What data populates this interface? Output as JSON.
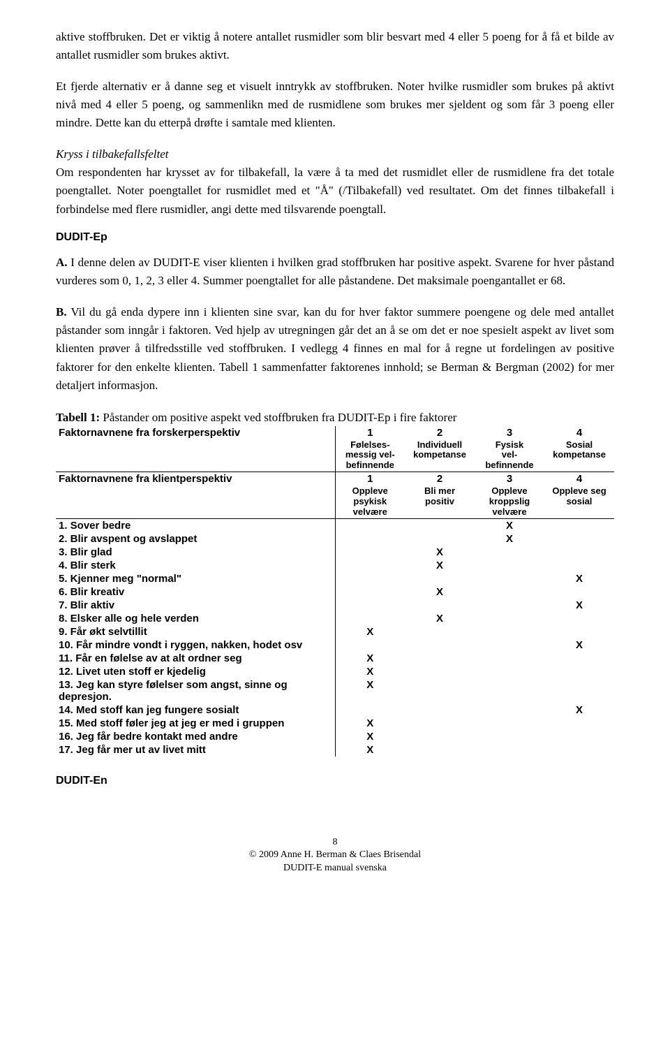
{
  "para1": "aktive stoffbruken. Det er viktig å notere antallet rusmidler som blir besvart med 4 eller 5 poeng for å få et bilde av antallet rusmidler som brukes aktivt.",
  "para2": "Et fjerde alternativ er å danne seg et visuelt inntrykk av stoffbruken. Noter hvilke rusmidler som brukes på aktivt nivå med 4 eller 5 poeng, og sammenlikn med de rusmidlene som brukes mer sjeldent og som får 3 poeng eller mindre. Dette kan du etterpå drøfte i samtale med klienten.",
  "kryss_title": "Kryss i tilbakefallsfeltet",
  "para3": "Om respondenten har krysset av for tilbakefall, la være å ta med det rusmidlet eller de rusmidlene fra det totale poengtallet. Noter poengtallet for rusmidlet med et \"Å\" (/Tilbakefall) ved resultatet. Om det finnes tilbakefall i forbindelse med flere rusmidler, angi dette med tilsvarende poengtall.",
  "dudit_ep": "DUDIT-Ep",
  "paraA_label": "A.",
  "paraA": " I denne delen av DUDIT-E viser klienten i hvilken grad stoffbruken har positive aspekt. Svarene for hver påstand vurderes som 0, 1, 2, 3 eller 4. Summer poengtallet for alle påstandene. Det maksimale poengantallet er 68.",
  "paraB_label": "B.",
  "paraB": " Vil du gå enda dypere inn i klienten sine svar, kan du for hver faktor summere poengene og dele med antallet påstander som inngår i faktoren. Ved hjelp av utregningen går det an å se om det er noe spesielt aspekt av livet som klienten prøver å tilfredsstille ved stoffbruken. I vedlegg 4 finnes en mal for å regne ut fordelingen av positive faktorer for den enkelte klienten. Tabell 1 sammenfatter faktorenes innhold; se Berman & Bergman (2002) for mer detaljert informasjon.",
  "table_title_bold": "Tabell 1:",
  "table_title_rest": " Påstander om positive aspekt ved stoffbruken fra DUDIT-Ep i fire faktorer",
  "row_f_hdr": "Faktornavnene fra forskerperspektiv",
  "row_k_hdr": "Faktornavnene fra klientperspektiv",
  "cols_num": [
    "1",
    "2",
    "3",
    "4"
  ],
  "cols_f": [
    "Følelses-\nmessig vel-\nbefinnende",
    "Individuell\nkompetanse",
    "Fysisk\nvel-\nbefinnende",
    "Sosial\nkompetanse"
  ],
  "cols_k": [
    "Oppleve\npsykisk\nvelvære",
    "Bli mer\npositiv",
    "Oppleve\nkroppslig\nvelvære",
    "Oppleve seg\nsosial"
  ],
  "rows": [
    {
      "label": "1. Sover bedre",
      "x": [
        0,
        0,
        1,
        0
      ]
    },
    {
      "label": "2. Blir avspent og avslappet",
      "x": [
        0,
        0,
        1,
        0
      ]
    },
    {
      "label": "3. Blir glad",
      "x": [
        0,
        1,
        0,
        0
      ]
    },
    {
      "label": "4. Blir sterk",
      "x": [
        0,
        1,
        0,
        0
      ]
    },
    {
      "label": "5. Kjenner meg \"normal\"",
      "x": [
        0,
        0,
        0,
        1
      ]
    },
    {
      "label": "6. Blir kreativ",
      "x": [
        0,
        1,
        0,
        0
      ]
    },
    {
      "label": "7. Blir aktiv",
      "x": [
        0,
        0,
        0,
        1
      ]
    },
    {
      "label": "8. Elsker alle og hele verden",
      "x": [
        0,
        1,
        0,
        0
      ]
    },
    {
      "label": "9. Får økt selvtillit",
      "x": [
        1,
        0,
        0,
        0
      ]
    },
    {
      "label": "10. Får mindre vondt i ryggen, nakken, hodet osv",
      "x": [
        0,
        0,
        0,
        1
      ]
    },
    {
      "label": "11. Får en følelse av at alt ordner seg",
      "x": [
        1,
        0,
        0,
        0
      ]
    },
    {
      "label": "12. Livet uten stoff er kjedelig",
      "x": [
        1,
        0,
        0,
        0
      ]
    },
    {
      "label": "13. Jeg kan styre følelser som angst, sinne og depresjon.",
      "x": [
        1,
        0,
        0,
        0
      ]
    },
    {
      "label": "14. Med stoff kan jeg fungere sosialt",
      "x": [
        0,
        0,
        0,
        1
      ]
    },
    {
      "label": "15. Med stoff føler jeg at jeg er med i gruppen",
      "x": [
        1,
        0,
        0,
        0
      ]
    },
    {
      "label": "16. Jeg får bedre kontakt med andre",
      "x": [
        1,
        0,
        0,
        0
      ]
    },
    {
      "label": "17. Jeg får mer ut av livet mitt",
      "x": [
        1,
        0,
        0,
        0
      ]
    }
  ],
  "dudit_en": "DUDIT-En",
  "footer_page": "8",
  "footer_line1": "© 2009 Anne H. Berman & Claes Brisendal",
  "footer_line2": "DUDIT-E manual svenska"
}
